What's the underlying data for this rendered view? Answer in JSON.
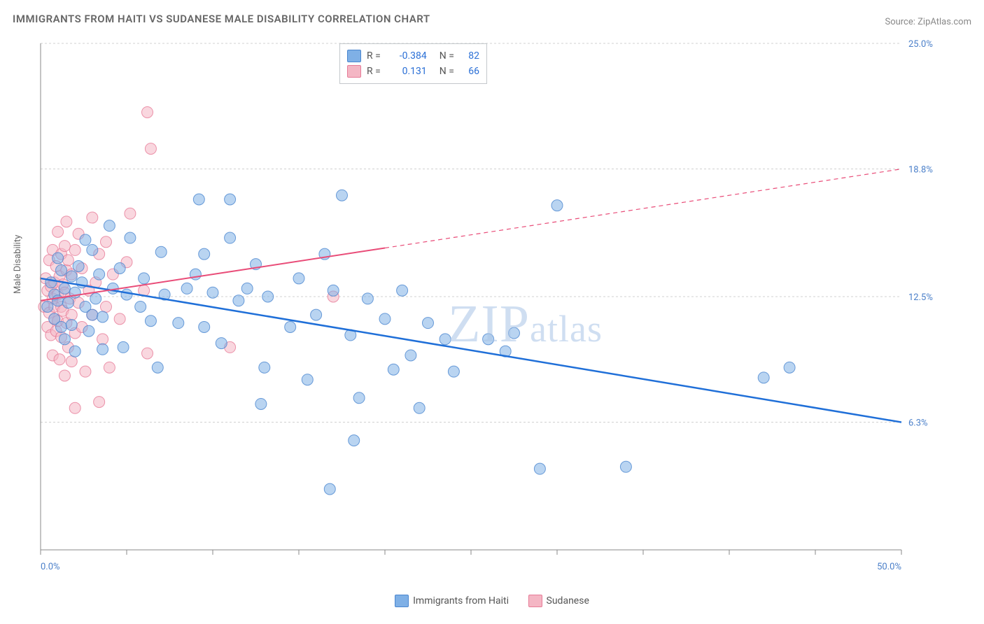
{
  "title": "IMMIGRANTS FROM HAITI VS SUDANESE MALE DISABILITY CORRELATION CHART",
  "source_prefix": "Source: ",
  "source_name": "ZipAtlas.com",
  "y_axis_label": "Male Disability",
  "watermark": "ZIPatlas",
  "chart": {
    "type": "scatter",
    "xlim": [
      0,
      50
    ],
    "ylim": [
      0,
      25
    ],
    "x_ticks": [
      0,
      5,
      10,
      15,
      20,
      25,
      30,
      35,
      40,
      45,
      50
    ],
    "y_ticks": [
      6.3,
      12.5,
      18.8,
      25.0
    ],
    "y_tick_labels": [
      "6.3%",
      "12.5%",
      "18.8%",
      "25.0%"
    ],
    "x_min_label": "0.0%",
    "x_max_label": "50.0%",
    "background_color": "#ffffff",
    "grid_color": "#d0d0d0",
    "axis_color": "#888888",
    "point_radius": 8,
    "point_opacity": 0.55,
    "series": [
      {
        "name": "Immigrants from Haiti",
        "color": "#7fb0e6",
        "stroke": "#4a86cf",
        "r_value": "-0.384",
        "n_value": "82",
        "trend": {
          "x1": 0,
          "y1": 13.4,
          "x2": 50,
          "y2": 6.3,
          "solid_until_x": 50,
          "color": "#1f6fd8",
          "width": 2.5
        },
        "points": [
          [
            0.4,
            12.0
          ],
          [
            0.6,
            13.2
          ],
          [
            0.8,
            11.4
          ],
          [
            0.8,
            12.6
          ],
          [
            1.0,
            12.3
          ],
          [
            1.0,
            14.4
          ],
          [
            1.2,
            11.0
          ],
          [
            1.2,
            13.8
          ],
          [
            1.4,
            12.9
          ],
          [
            1.4,
            10.4
          ],
          [
            1.6,
            12.2
          ],
          [
            1.8,
            13.5
          ],
          [
            1.8,
            11.1
          ],
          [
            2.0,
            9.8
          ],
          [
            2.0,
            12.7
          ],
          [
            2.2,
            14.0
          ],
          [
            2.4,
            13.2
          ],
          [
            2.6,
            15.3
          ],
          [
            2.6,
            12.0
          ],
          [
            2.8,
            10.8
          ],
          [
            3.0,
            11.6
          ],
          [
            3.0,
            14.8
          ],
          [
            3.2,
            12.4
          ],
          [
            3.4,
            13.6
          ],
          [
            3.6,
            11.5
          ],
          [
            3.6,
            9.9
          ],
          [
            4.0,
            16.0
          ],
          [
            4.2,
            12.9
          ],
          [
            4.6,
            13.9
          ],
          [
            4.8,
            10.0
          ],
          [
            5.0,
            12.6
          ],
          [
            5.2,
            15.4
          ],
          [
            5.8,
            12.0
          ],
          [
            6.0,
            13.4
          ],
          [
            6.4,
            11.3
          ],
          [
            6.8,
            9.0
          ],
          [
            7.0,
            14.7
          ],
          [
            7.2,
            12.6
          ],
          [
            9.2,
            17.3
          ],
          [
            11.0,
            17.3
          ],
          [
            8.0,
            11.2
          ],
          [
            8.5,
            12.9
          ],
          [
            9.0,
            13.6
          ],
          [
            9.5,
            14.6
          ],
          [
            9.5,
            11.0
          ],
          [
            10.0,
            12.7
          ],
          [
            10.5,
            10.2
          ],
          [
            11.0,
            15.4
          ],
          [
            11.5,
            12.3
          ],
          [
            12.0,
            12.9
          ],
          [
            12.5,
            14.1
          ],
          [
            13.0,
            9.0
          ],
          [
            13.2,
            12.5
          ],
          [
            12.8,
            7.2
          ],
          [
            14.5,
            11.0
          ],
          [
            15.0,
            13.4
          ],
          [
            15.5,
            8.4
          ],
          [
            16.0,
            11.6
          ],
          [
            16.5,
            14.6
          ],
          [
            17.0,
            12.8
          ],
          [
            17.5,
            17.5
          ],
          [
            18.0,
            10.6
          ],
          [
            18.5,
            7.5
          ],
          [
            19.0,
            12.4
          ],
          [
            16.8,
            3.0
          ],
          [
            18.2,
            5.4
          ],
          [
            20.0,
            11.4
          ],
          [
            20.5,
            8.9
          ],
          [
            21.0,
            12.8
          ],
          [
            21.5,
            9.6
          ],
          [
            22.0,
            7.0
          ],
          [
            22.5,
            11.2
          ],
          [
            23.5,
            10.4
          ],
          [
            24.0,
            8.8
          ],
          [
            26.0,
            10.4
          ],
          [
            27.0,
            9.8
          ],
          [
            27.5,
            10.7
          ],
          [
            29.0,
            4.0
          ],
          [
            30.0,
            17.0
          ],
          [
            34.0,
            4.1
          ],
          [
            42.0,
            8.5
          ],
          [
            43.5,
            9.0
          ]
        ]
      },
      {
        "name": "Sudanese",
        "color": "#f4b6c4",
        "stroke": "#e77b97",
        "r_value": "0.131",
        "n_value": "66",
        "trend": {
          "x1": 0,
          "y1": 12.3,
          "x2": 50,
          "y2": 18.8,
          "solid_until_x": 20,
          "color": "#e94c78",
          "width": 2
        },
        "points": [
          [
            0.2,
            12.0
          ],
          [
            0.3,
            13.4
          ],
          [
            0.4,
            11.0
          ],
          [
            0.4,
            12.8
          ],
          [
            0.5,
            14.3
          ],
          [
            0.5,
            11.7
          ],
          [
            0.6,
            13.0
          ],
          [
            0.6,
            10.6
          ],
          [
            0.7,
            12.4
          ],
          [
            0.7,
            14.8
          ],
          [
            0.7,
            9.6
          ],
          [
            0.8,
            11.4
          ],
          [
            0.8,
            13.2
          ],
          [
            0.8,
            12.0
          ],
          [
            0.9,
            14.0
          ],
          [
            0.9,
            10.8
          ],
          [
            1.0,
            15.7
          ],
          [
            1.0,
            12.6
          ],
          [
            1.0,
            11.3
          ],
          [
            1.1,
            13.5
          ],
          [
            1.1,
            9.4
          ],
          [
            1.2,
            14.6
          ],
          [
            1.2,
            12.0
          ],
          [
            1.2,
            10.5
          ],
          [
            1.3,
            13.1
          ],
          [
            1.3,
            11.8
          ],
          [
            1.4,
            15.0
          ],
          [
            1.4,
            12.7
          ],
          [
            1.4,
            8.6
          ],
          [
            1.5,
            16.2
          ],
          [
            1.5,
            11.2
          ],
          [
            1.5,
            13.8
          ],
          [
            1.6,
            10.0
          ],
          [
            1.6,
            14.3
          ],
          [
            1.7,
            12.4
          ],
          [
            1.8,
            9.3
          ],
          [
            1.8,
            13.6
          ],
          [
            1.8,
            11.6
          ],
          [
            2.0,
            14.8
          ],
          [
            2.0,
            10.7
          ],
          [
            2.0,
            7.0
          ],
          [
            2.2,
            15.6
          ],
          [
            2.2,
            12.2
          ],
          [
            2.4,
            11.0
          ],
          [
            2.4,
            13.9
          ],
          [
            2.6,
            8.8
          ],
          [
            2.8,
            12.8
          ],
          [
            3.0,
            16.4
          ],
          [
            3.0,
            11.6
          ],
          [
            3.2,
            13.2
          ],
          [
            3.4,
            14.6
          ],
          [
            3.4,
            7.3
          ],
          [
            3.6,
            10.4
          ],
          [
            3.8,
            15.2
          ],
          [
            3.8,
            12.0
          ],
          [
            4.0,
            9.0
          ],
          [
            4.2,
            13.6
          ],
          [
            4.6,
            11.4
          ],
          [
            5.0,
            14.2
          ],
          [
            5.2,
            16.6
          ],
          [
            6.0,
            12.8
          ],
          [
            6.2,
            9.7
          ],
          [
            6.2,
            21.6
          ],
          [
            6.4,
            19.8
          ],
          [
            11.0,
            10.0
          ],
          [
            17.0,
            12.5
          ]
        ]
      }
    ]
  },
  "bottom_legend": [
    {
      "label": "Immigrants from Haiti",
      "color": "#7fb0e6",
      "stroke": "#4a86cf"
    },
    {
      "label": "Sudanese",
      "color": "#f4b6c4",
      "stroke": "#e77b97"
    }
  ]
}
